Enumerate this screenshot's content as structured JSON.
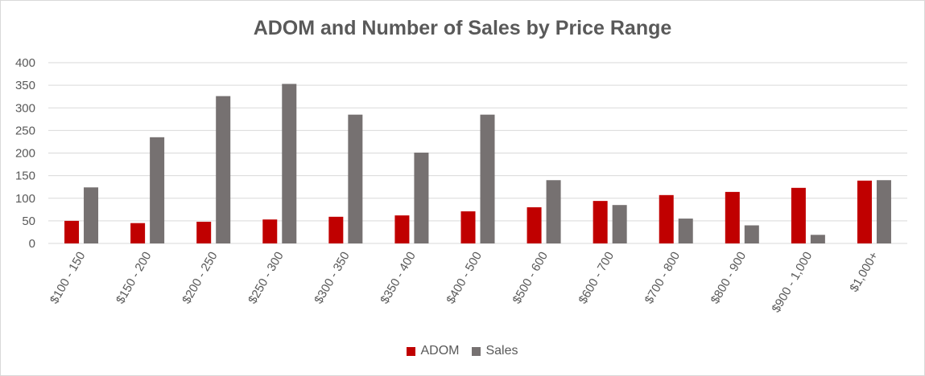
{
  "chart_data": {
    "type": "bar",
    "title": "ADOM and Number of Sales by Price Range",
    "xlabel": "",
    "ylabel": "",
    "ylim": [
      0,
      400
    ],
    "yticks": [
      0,
      50,
      100,
      150,
      200,
      250,
      300,
      350,
      400
    ],
    "categories": [
      "$100 - 150",
      "$150 - 200",
      "$200 - 250",
      "$250 - 300",
      "$300 - 350",
      "$350 - 400",
      "$400 - 500",
      "$500 - 600",
      "$600 - 700",
      "$700 - 800",
      "$800 - 900",
      "$900 - 1,000",
      "$1,000+"
    ],
    "series": [
      {
        "name": "ADOM",
        "color": "#c00000",
        "values": [
          50,
          45,
          48,
          53,
          59,
          62,
          71,
          80,
          94,
          107,
          114,
          123,
          139
        ]
      },
      {
        "name": "Sales",
        "color": "#767171",
        "values": [
          124,
          235,
          326,
          353,
          285,
          201,
          285,
          140,
          85,
          55,
          40,
          19,
          140
        ]
      }
    ],
    "grid": true,
    "legend_position": "bottom"
  }
}
